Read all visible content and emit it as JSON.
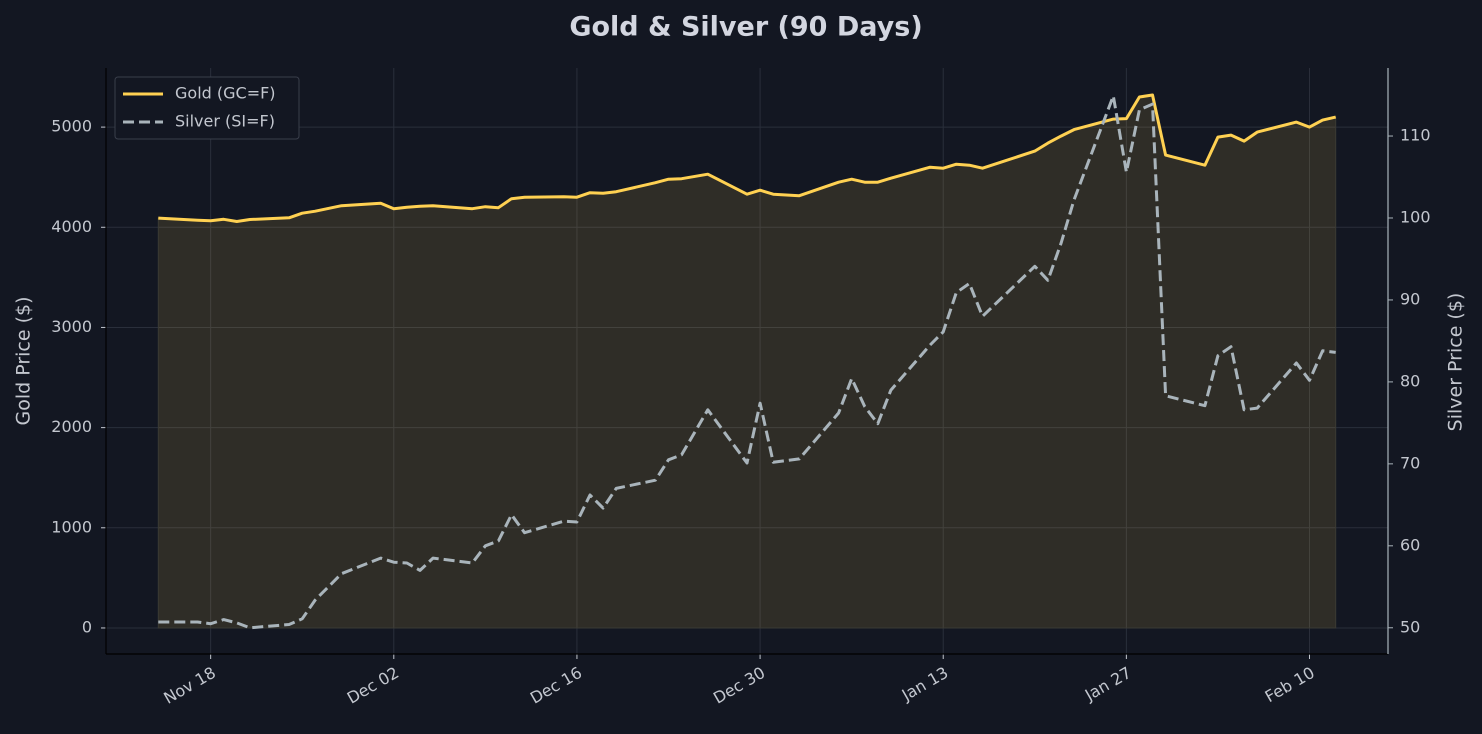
{
  "chart_data": {
    "type": "line",
    "title": "Gold & Silver (90 Days)",
    "x": [
      "Nov 14",
      "Nov 17",
      "Nov 18",
      "Nov 19",
      "Nov 20",
      "Nov 21",
      "Nov 24",
      "Nov 25",
      "Nov 26",
      "Nov 28",
      "Dec 01",
      "Dec 02",
      "Dec 03",
      "Dec 04",
      "Dec 05",
      "Dec 08",
      "Dec 09",
      "Dec 10",
      "Dec 11",
      "Dec 12",
      "Dec 15",
      "Dec 16",
      "Dec 17",
      "Dec 18",
      "Dec 19",
      "Dec 22",
      "Dec 23",
      "Dec 24",
      "Dec 26",
      "Dec 29",
      "Dec 30",
      "Dec 31",
      "Jan 02",
      "Jan 05",
      "Jan 06",
      "Jan 07",
      "Jan 08",
      "Jan 09",
      "Jan 12",
      "Jan 13",
      "Jan 14",
      "Jan 15",
      "Jan 16",
      "Jan 20",
      "Jan 21",
      "Jan 22",
      "Jan 23",
      "Jan 26",
      "Jan 27",
      "Jan 28",
      "Jan 29",
      "Jan 30",
      "Feb 02",
      "Feb 03",
      "Feb 04",
      "Feb 05",
      "Feb 06",
      "Feb 09",
      "Feb 10",
      "Feb 11",
      "Feb 12"
    ],
    "series": [
      {
        "name": "Gold (GC=F)",
        "color": "#ffd152",
        "linestyle": "solid",
        "fill": true,
        "axis": "y",
        "values": [
          4092,
          4070,
          4065,
          4080,
          4058,
          4078,
          4095,
          4140,
          4160,
          4215,
          4240,
          4185,
          4200,
          4210,
          4215,
          4185,
          4205,
          4195,
          4285,
          4300,
          4305,
          4300,
          4345,
          4340,
          4355,
          4445,
          4480,
          4485,
          4530,
          4330,
          4370,
          4330,
          4315,
          4450,
          4480,
          4450,
          4450,
          4490,
          4600,
          4590,
          4630,
          4620,
          4590,
          4760,
          4840,
          4910,
          4975,
          5080,
          5085,
          5300,
          5320,
          4720,
          4620,
          4900,
          4920,
          4860,
          4950,
          5050,
          5000,
          5070,
          5100
        ]
      },
      {
        "name": "Silver (SI=F)",
        "color": "#a9b4bb",
        "linestyle": "dashed",
        "fill": false,
        "axis": "y2",
        "values": [
          50.7,
          50.7,
          50.5,
          51.0,
          50.6,
          50.0,
          50.4,
          51.1,
          53.4,
          56.6,
          58.5,
          58.0,
          57.9,
          57.0,
          58.5,
          57.9,
          60.0,
          60.6,
          63.8,
          61.6,
          63.0,
          62.9,
          66.2,
          64.6,
          67.0,
          68.0,
          70.5,
          71.1,
          76.6,
          70.1,
          77.4,
          70.2,
          70.6,
          76.2,
          80.4,
          77.0,
          74.9,
          79.0,
          84.5,
          86.1,
          90.9,
          92.0,
          88.0,
          94.1,
          92.4,
          96.9,
          102.2,
          114.9,
          105.6,
          113.2,
          113.9,
          78.3,
          77.1,
          83.2,
          84.3,
          76.6,
          76.8,
          82.3,
          80.2,
          83.8,
          83.6
        ]
      }
    ],
    "ylabel": "Gold Price ($)",
    "y2label": "Silver Price ($)",
    "xlim": [
      "Nov 10",
      "Feb 16"
    ],
    "xticks": [
      "Nov 18",
      "Dec 02",
      "Dec 16",
      "Dec 30",
      "Jan 13",
      "Jan 27",
      "Feb 10"
    ],
    "ylim": [
      -260,
      5590
    ],
    "yticks": [
      0,
      1000,
      2000,
      3000,
      4000,
      5000
    ],
    "y2lim": [
      46.8,
      118.3
    ],
    "y2ticks": [
      50,
      60,
      70,
      80,
      90,
      100,
      110
    ],
    "grid": true,
    "legend": "upper left"
  }
}
